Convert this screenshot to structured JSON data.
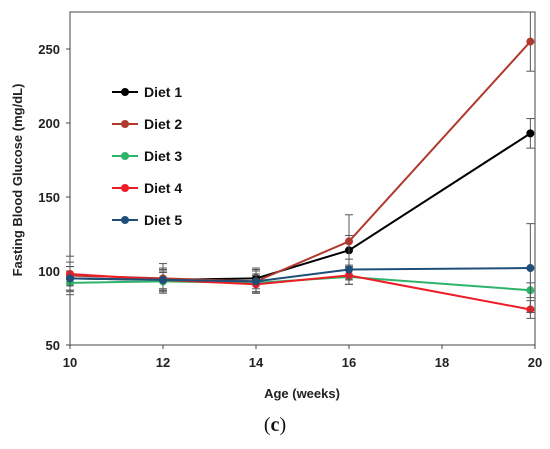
{
  "chart_data": {
    "type": "line",
    "title": "",
    "xlabel": "Age (weeks)",
    "ylabel": "Fasting Blood Glucose (mg/dL)",
    "xlim": [
      10,
      20
    ],
    "ylim": [
      50,
      275
    ],
    "xticks": [
      "10",
      "12",
      "14",
      "16",
      "18",
      "20"
    ],
    "yticks": [
      "50",
      "100",
      "150",
      "200",
      "250"
    ],
    "x": [
      10,
      12,
      14,
      16,
      19.9
    ],
    "legend_position": "upper-left",
    "grid": false,
    "series": [
      {
        "name": "Diet 1",
        "color": "#000000",
        "values": [
          95,
          94,
          95,
          114,
          193
        ],
        "errors": [
          8,
          8,
          7,
          10,
          10
        ]
      },
      {
        "name": "Diet 2",
        "color": "#b03a2e",
        "values": [
          97,
          95,
          93,
          120,
          255
        ],
        "errors": [
          13,
          10,
          8,
          18,
          20
        ]
      },
      {
        "name": "Diet 3",
        "color": "#2db36a",
        "values": [
          92,
          93,
          92,
          96,
          87
        ],
        "errors": [
          6,
          6,
          6,
          5,
          5
        ]
      },
      {
        "name": "Diet 4",
        "color": "#ee1c25",
        "values": [
          98,
          94,
          91,
          97,
          74
        ],
        "errors": [
          8,
          6,
          6,
          6,
          6
        ]
      },
      {
        "name": "Diet 5",
        "color": "#1f4e79",
        "values": [
          95,
          94,
          93,
          101,
          102
        ],
        "errors": [
          8,
          7,
          7,
          7,
          30
        ]
      }
    ]
  },
  "caption": {
    "open": "(",
    "letter": "c",
    "close": ")"
  }
}
